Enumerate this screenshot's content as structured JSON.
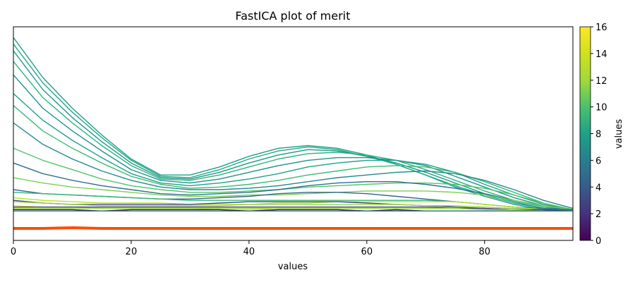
{
  "chart_data": {
    "type": "line",
    "title": "FastICA plot of merit",
    "xlabel": "values",
    "ylabel": "",
    "xlim": [
      0,
      95
    ],
    "ylim": [
      0,
      16
    ],
    "x_ticks": [
      0,
      20,
      40,
      60,
      80
    ],
    "grid": false,
    "colorbar": {
      "label": "values",
      "colormap": "viridis",
      "range": [
        0,
        16
      ],
      "ticks": [
        0,
        2,
        4,
        6,
        8,
        10,
        12,
        14,
        16
      ]
    },
    "x": [
      0,
      5,
      10,
      15,
      20,
      25,
      30,
      35,
      40,
      45,
      50,
      55,
      60,
      65,
      70,
      75,
      80,
      85,
      90,
      95
    ],
    "series": [
      {
        "color": "#1fa088",
        "values": [
          15.2,
          12.2,
          9.9,
          7.9,
          6.1,
          4.9,
          4.9,
          5.5,
          6.3,
          6.9,
          7.1,
          6.9,
          6.4,
          5.7,
          4.9,
          4.0,
          3.3,
          2.7,
          2.3,
          2.2
        ]
      },
      {
        "color": "#22a884",
        "values": [
          14.7,
          11.8,
          9.6,
          7.7,
          6.0,
          4.8,
          4.7,
          5.3,
          6.1,
          6.7,
          7.0,
          6.8,
          6.3,
          5.7,
          4.9,
          4.1,
          3.4,
          2.8,
          2.4,
          2.2
        ]
      },
      {
        "color": "#1f988b",
        "values": [
          14.2,
          11.3,
          9.2,
          7.4,
          5.8,
          4.7,
          4.6,
          5.1,
          5.8,
          6.4,
          6.8,
          6.7,
          6.3,
          5.8,
          5.1,
          4.3,
          3.5,
          2.9,
          2.4,
          2.2
        ]
      },
      {
        "color": "#2db27d",
        "values": [
          13.4,
          10.7,
          8.8,
          7.1,
          5.6,
          4.6,
          4.5,
          4.9,
          5.5,
          6.1,
          6.5,
          6.6,
          6.4,
          6.0,
          5.3,
          4.5,
          3.7,
          3.0,
          2.5,
          2.2
        ]
      },
      {
        "color": "#21918c",
        "values": [
          12.4,
          9.9,
          8.2,
          6.7,
          5.3,
          4.5,
          4.3,
          4.6,
          5.1,
          5.6,
          6.0,
          6.2,
          6.2,
          6.0,
          5.6,
          4.8,
          4.0,
          3.2,
          2.6,
          2.2
        ]
      },
      {
        "color": "#1fa188",
        "values": [
          11.0,
          9.0,
          7.5,
          6.2,
          5.0,
          4.3,
          4.1,
          4.3,
          4.6,
          5.0,
          5.5,
          5.8,
          6.0,
          6.0,
          5.7,
          5.1,
          4.2,
          3.4,
          2.7,
          2.3
        ]
      },
      {
        "color": "#3bbb75",
        "values": [
          10.1,
          8.2,
          6.9,
          5.8,
          4.8,
          4.2,
          3.9,
          4.0,
          4.2,
          4.5,
          4.9,
          5.2,
          5.5,
          5.6,
          5.5,
          5.1,
          4.4,
          3.6,
          2.8,
          2.3
        ]
      },
      {
        "color": "#23888e",
        "values": [
          8.8,
          7.2,
          6.1,
          5.2,
          4.5,
          4.0,
          3.8,
          3.8,
          3.9,
          4.1,
          4.4,
          4.7,
          4.9,
          5.1,
          5.2,
          5.0,
          4.5,
          3.8,
          3.0,
          2.4
        ]
      },
      {
        "color": "#52c569",
        "values": [
          6.9,
          6.0,
          5.3,
          4.6,
          4.1,
          3.8,
          3.6,
          3.6,
          3.7,
          3.8,
          4.0,
          4.1,
          4.2,
          4.3,
          4.3,
          4.2,
          3.9,
          3.4,
          2.8,
          2.3
        ]
      },
      {
        "color": "#2c728e",
        "values": [
          5.8,
          5.0,
          4.5,
          4.1,
          3.8,
          3.5,
          3.4,
          3.5,
          3.6,
          3.8,
          4.1,
          4.3,
          4.4,
          4.4,
          4.2,
          3.9,
          3.5,
          3.0,
          2.6,
          2.3
        ]
      },
      {
        "color": "#7ad151",
        "values": [
          4.7,
          4.3,
          4.0,
          3.8,
          3.6,
          3.4,
          3.3,
          3.3,
          3.4,
          3.4,
          3.5,
          3.6,
          3.7,
          3.7,
          3.7,
          3.6,
          3.4,
          3.0,
          2.6,
          2.3
        ]
      },
      {
        "color": "#31688e",
        "values": [
          3.8,
          3.5,
          3.4,
          3.3,
          3.2,
          3.1,
          3.1,
          3.2,
          3.3,
          3.5,
          3.6,
          3.6,
          3.5,
          3.3,
          3.1,
          2.9,
          2.7,
          2.5,
          2.4,
          2.3
        ]
      },
      {
        "color": "#35b779",
        "values": [
          3.6,
          3.5,
          3.4,
          3.3,
          3.2,
          3.1,
          3.0,
          3.0,
          3.0,
          3.0,
          3.0,
          3.0,
          3.0,
          3.0,
          3.0,
          2.9,
          2.7,
          2.5,
          2.3,
          2.2
        ]
      },
      {
        "color": "#bddf26",
        "values": [
          3.2,
          3.0,
          2.9,
          2.8,
          2.8,
          2.8,
          2.7,
          2.7,
          2.7,
          2.8,
          2.8,
          2.9,
          2.9,
          2.9,
          2.9,
          2.9,
          2.7,
          2.5,
          2.3,
          2.2
        ]
      },
      {
        "color": "#3e4989",
        "values": [
          3.0,
          2.8,
          2.7,
          2.7,
          2.7,
          2.7,
          2.7,
          2.8,
          2.9,
          2.9,
          2.9,
          2.9,
          2.8,
          2.7,
          2.6,
          2.5,
          2.4,
          2.3,
          2.3,
          2.2
        ]
      },
      {
        "color": "#95d840",
        "values": [
          2.9,
          2.8,
          2.7,
          2.6,
          2.6,
          2.6,
          2.6,
          2.6,
          2.7,
          2.7,
          2.7,
          2.7,
          2.7,
          2.7,
          2.6,
          2.6,
          2.5,
          2.4,
          2.3,
          2.2
        ]
      },
      {
        "color": "#d8e219",
        "values": [
          2.6,
          2.5,
          2.5,
          2.4,
          2.4,
          2.4,
          2.4,
          2.3,
          2.3,
          2.4,
          2.4,
          2.4,
          2.4,
          2.4,
          2.4,
          2.4,
          2.3,
          2.3,
          2.2,
          2.2
        ]
      },
      {
        "color": "#443983",
        "values": [
          2.5,
          2.5,
          2.5,
          2.5,
          2.5,
          2.5,
          2.5,
          2.5,
          2.5,
          2.5,
          2.5,
          2.5,
          2.5,
          2.5,
          2.5,
          2.4,
          2.4,
          2.3,
          2.3,
          2.2
        ]
      },
      {
        "color": "#a0da39",
        "values": [
          2.4,
          2.4,
          2.4,
          2.4,
          2.4,
          2.4,
          2.4,
          2.4,
          2.4,
          2.4,
          2.4,
          2.4,
          2.4,
          2.4,
          2.4,
          2.4,
          2.3,
          2.3,
          2.2,
          2.2
        ]
      },
      {
        "color": "#440154",
        "values": [
          2.3,
          2.3,
          2.3,
          2.2,
          2.3,
          2.3,
          2.3,
          2.3,
          2.2,
          2.3,
          2.3,
          2.3,
          2.2,
          2.3,
          2.2,
          2.2,
          2.2,
          2.2,
          2.2,
          2.2
        ]
      },
      {
        "color": "#26828e",
        "values": [
          2.2,
          2.2,
          2.2,
          2.2,
          2.2,
          2.2,
          2.2,
          2.2,
          2.2,
          2.2,
          2.2,
          2.2,
          2.2,
          2.2,
          2.2,
          2.2,
          2.2,
          2.2,
          2.2,
          2.2
        ]
      },
      {
        "color": "#fc4e07",
        "thick": true,
        "values": [
          0.9,
          0.9,
          0.95,
          0.9,
          0.9,
          0.9,
          0.9,
          0.9,
          0.9,
          0.9,
          0.9,
          0.9,
          0.9,
          0.9,
          0.9,
          0.9,
          0.9,
          0.9,
          0.9,
          0.9
        ]
      }
    ]
  }
}
